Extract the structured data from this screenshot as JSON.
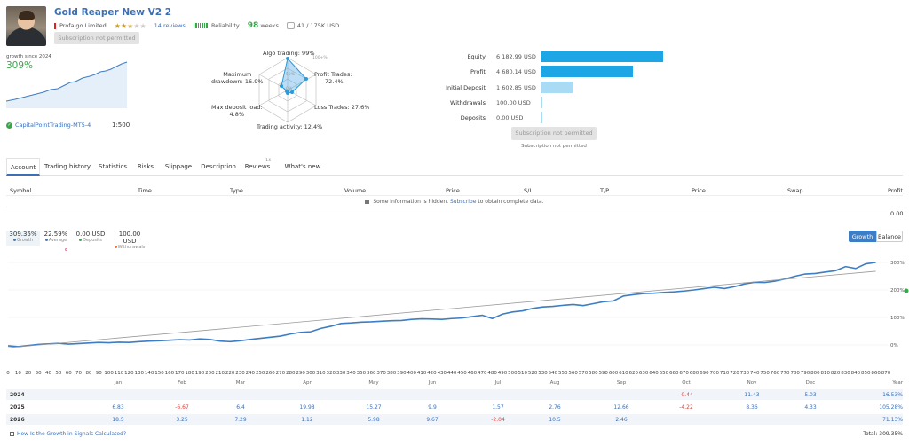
{
  "header": {
    "title": "Gold Reaper New V2 2",
    "company": "Profalgo Limited",
    "rating_stars": 2.5,
    "reviews": "14 reviews",
    "reliability": "Reliability",
    "weeks_num": "98",
    "weeks_label": "weeks",
    "subscribers": "41 / 175K USD",
    "subscription_button": "Subscription not permitted"
  },
  "growth_mini": {
    "label": "growth since 2024",
    "value": "309%",
    "account": "CapitalPointTrading-MT5-4",
    "leverage": "1:500"
  },
  "radar": {
    "algo": "Algo trading: 99%",
    "profit_trades_1": "Profit Trades:",
    "profit_trades_2": "72.4%",
    "loss_trades": "Loss Trades: 27.6%",
    "activity": "Trading activity: 12.4%",
    "deposit_load_1": "Max deposit load:",
    "deposit_load_2": "4.8%",
    "drawdown_1": "Maximum",
    "drawdown_2": "drawdown: 16.9%",
    "scale_100": "100+%",
    "scale_50": "50%",
    "scale_0": "0%"
  },
  "equity": {
    "rows": [
      {
        "label": "Equity",
        "value": "6 182.99 USD",
        "fraction": 1.0,
        "color": "#1da6e6"
      },
      {
        "label": "Profit",
        "value": "4 680.14 USD",
        "fraction": 0.757,
        "color": "#1da6e6"
      },
      {
        "label": "Initial Deposit",
        "value": "1 602.85 USD",
        "fraction": 0.259,
        "color": "#a9dcf4"
      },
      {
        "label": "Withdrawals",
        "value": "100.00 USD",
        "fraction": 0.016,
        "color": "#a9dcf4"
      },
      {
        "label": "Deposits",
        "value": "0.00 USD",
        "fraction": 0.0,
        "color": "#a9dcf4"
      }
    ],
    "button": "Subscription not permitted",
    "note": "Subscription not permitted"
  },
  "tabs": [
    "Account",
    "Trading history",
    "Statistics",
    "Risks",
    "Slippage",
    "Description",
    "Reviews",
    "What's new"
  ],
  "reviews_badge": "14",
  "table": {
    "columns": [
      "Symbol",
      "Time",
      "Type",
      "Volume",
      "Price",
      "S/L",
      "T/P",
      "Price",
      "Swap",
      "Profit"
    ],
    "hidden_msg_1": "Some information is hidden.",
    "hidden_link": "Subscribe",
    "hidden_msg_2": "to obtain complete data.",
    "profit_total": "0.00"
  },
  "stats": [
    {
      "value": "309.35%",
      "label": "Growth",
      "color": "#3c7dc3"
    },
    {
      "value": "22.59%",
      "label": "Average",
      "color": "#3c7dc3"
    },
    {
      "value": "0.00 USD",
      "label": "Deposits",
      "color": "#3aa64b"
    },
    {
      "value": "100.00 USD",
      "label": "Withdrawals",
      "color": "#e8763a"
    }
  ],
  "toggle": {
    "growth": "Growth",
    "balance": "Balance"
  },
  "chart_data": {
    "type": "line",
    "x_ticks": [
      0,
      10,
      20,
      30,
      40,
      50,
      60,
      70,
      80,
      90,
      100,
      110,
      120,
      130,
      140,
      150,
      160,
      170,
      180,
      190,
      200,
      210,
      220,
      230,
      240,
      250,
      260,
      270,
      280,
      290,
      300,
      310,
      320,
      330,
      340,
      350,
      360,
      370,
      380,
      390,
      400,
      410,
      420,
      430,
      440,
      450,
      460,
      470,
      480,
      490,
      500,
      510,
      520,
      530,
      540,
      550,
      560,
      570,
      580,
      590,
      600,
      610,
      620,
      630,
      640,
      650,
      660,
      670,
      680,
      690,
      700,
      710,
      720,
      730,
      740,
      750,
      760,
      770,
      780,
      790,
      800,
      810,
      820,
      830,
      840,
      850,
      860,
      870
    ],
    "y_ticks": [
      "0%",
      "100%",
      "200%",
      "300%"
    ],
    "xlim": [
      0,
      870
    ],
    "ylim": [
      -25,
      320
    ],
    "series": [
      {
        "name": "Growth",
        "x": [
          0,
          10,
          20,
          30,
          40,
          50,
          60,
          70,
          80,
          90,
          100,
          110,
          120,
          130,
          140,
          150,
          160,
          170,
          180,
          190,
          200,
          210,
          220,
          230,
          240,
          250,
          260,
          270,
          280,
          290,
          300,
          310,
          320,
          330,
          340,
          350,
          360,
          370,
          380,
          390,
          400,
          410,
          420,
          430,
          440,
          450,
          460,
          470,
          480,
          490,
          500,
          510,
          520,
          530,
          540,
          550,
          560,
          570,
          580,
          590,
          600,
          610,
          620,
          630,
          640,
          650,
          660,
          670,
          680,
          690,
          700,
          710,
          720,
          730,
          740,
          750,
          760,
          770,
          780,
          790,
          800,
          810,
          820,
          830,
          840,
          850,
          860
        ],
        "y": [
          -3,
          -6,
          -2,
          2,
          4,
          6,
          3,
          5,
          7,
          9,
          8,
          10,
          9,
          12,
          14,
          15,
          17,
          19,
          18,
          22,
          20,
          14,
          12,
          15,
          20,
          24,
          28,
          32,
          40,
          46,
          48,
          60,
          68,
          78,
          80,
          83,
          84,
          86,
          88,
          89,
          93,
          95,
          94,
          93,
          96,
          98,
          103,
          108,
          96,
          112,
          120,
          124,
          133,
          138,
          140,
          144,
          147,
          143,
          150,
          157,
          160,
          178,
          183,
          187,
          188,
          191,
          193,
          196,
          200,
          205,
          210,
          205,
          212,
          222,
          228,
          227,
          232,
          240,
          250,
          258,
          260,
          265,
          270,
          285,
          278,
          295,
          300
        ],
        "color": "#3c7dc3"
      },
      {
        "name": "Trend",
        "x": [
          0,
          860
        ],
        "y": [
          -10,
          268
        ],
        "color": "#999999"
      }
    ]
  },
  "monthly": {
    "months": [
      "Jan",
      "Feb",
      "Mar",
      "Apr",
      "May",
      "Jun",
      "Jul",
      "Aug",
      "Sep",
      "Oct",
      "Nov",
      "Dec",
      "Year"
    ],
    "rows": [
      {
        "year": "2024",
        "values": [
          "",
          "",
          "",
          "",
          "",
          "",
          "",
          "",
          "",
          "-0.44",
          "11.43",
          "5.03",
          "16.53%"
        ]
      },
      {
        "year": "2025",
        "values": [
          "6.83",
          "-6.67",
          "6.4",
          "19.98",
          "15.27",
          "9.9",
          "1.57",
          "2.76",
          "12.66",
          "-4.22",
          "8.36",
          "4.33",
          "105.28%"
        ]
      },
      {
        "year": "2026",
        "values": [
          "18.5",
          "3.25",
          "7.29",
          "1.12",
          "5.98",
          "9.67",
          "-2.04",
          "10.5",
          "2.46",
          "",
          "",
          "",
          "71.13%"
        ]
      }
    ],
    "footer_link": "How Is the Growth in Signals Calculated?",
    "total": "Total: 309.35%"
  }
}
